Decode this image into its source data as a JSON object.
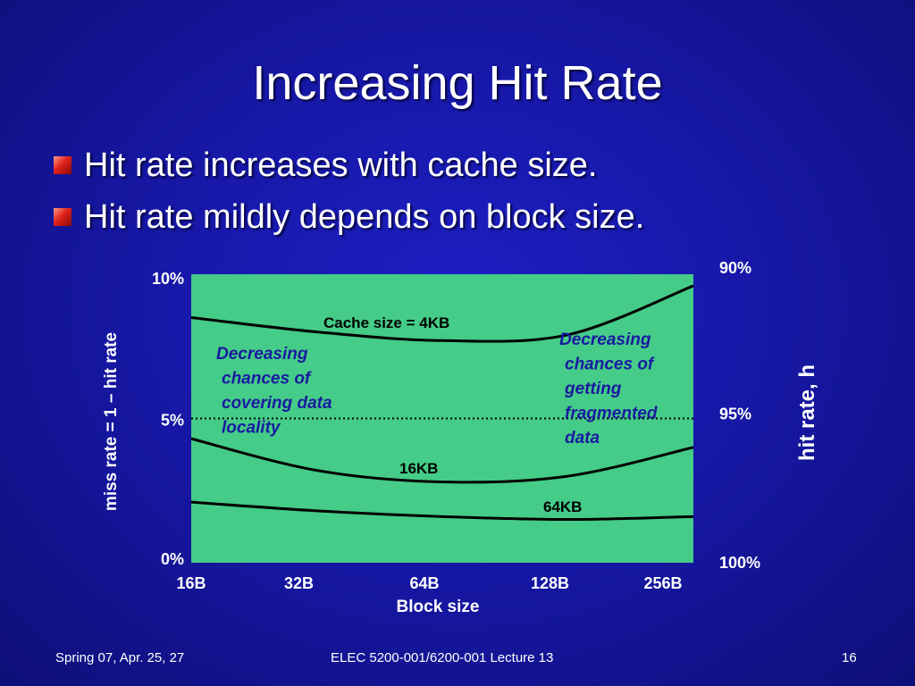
{
  "slide": {
    "title": "Increasing Hit Rate",
    "bullets": [
      "Hit rate increases with cache size.",
      "Hit rate mildly depends on block size."
    ]
  },
  "footer": {
    "left": "Spring 07, Apr. 25, 27",
    "center": "ELEC 5200-001/6200-001 Lecture 13",
    "page": "16"
  },
  "colors": {
    "background": "#1718a8",
    "plot_fill": "#44cc88",
    "curve": "#000000",
    "annotation_text": "#1a1aa0",
    "bullet": "#e0221a"
  },
  "chart_data": {
    "type": "line",
    "categories": [
      "16B",
      "32B",
      "64B",
      "128B",
      "256B"
    ],
    "xlabel": "Block size",
    "ylabel": "miss rate = 1 – hit rate",
    "ylabel_right": "hit rate, h",
    "ylim": [
      0,
      10
    ],
    "yticks_left": [
      "0%",
      "5%",
      "10%"
    ],
    "yticks_right": [
      "100%",
      "95%",
      "90%"
    ],
    "reference_line": {
      "value": 5,
      "style": "dotted"
    },
    "series": [
      {
        "name": "Cache size = 4KB",
        "values": [
          8.5,
          8.0,
          7.7,
          7.9,
          9.6
        ]
      },
      {
        "name": "16KB",
        "values": [
          4.3,
          3.2,
          2.8,
          3.0,
          4.0
        ]
      },
      {
        "name": "64KB",
        "values": [
          2.1,
          1.8,
          1.6,
          1.5,
          1.6
        ]
      }
    ],
    "annotations": [
      {
        "text": "Decreasing\n chances of\n covering data\n locality",
        "side": "left"
      },
      {
        "text": "Decreasing\n chances of\n getting\n fragmented\n data",
        "side": "right"
      }
    ]
  }
}
